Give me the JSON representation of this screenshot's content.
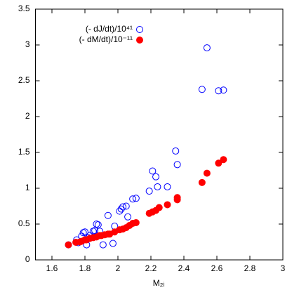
{
  "chart_data": {
    "type": "scatter",
    "x_label": "M₂ᵢ",
    "xlim": [
      1.5,
      3
    ],
    "xticks": [
      1.6,
      1.8,
      2,
      2.2,
      2.4,
      2.6,
      2.8,
      3
    ],
    "ylim": [
      0,
      3.5
    ],
    "yticks": [
      0,
      0.5,
      1,
      1.5,
      2,
      2.5,
      3,
      3.5
    ],
    "legend": "top-left",
    "series": [
      {
        "name": "(- dJ/dt)/10⁴¹",
        "color": "#0000ff",
        "marker": "open-circle",
        "x": [
          1.7,
          1.75,
          1.76,
          1.78,
          1.79,
          1.8,
          1.81,
          1.82,
          1.83,
          1.85,
          1.86,
          1.87,
          1.88,
          1.89,
          1.91,
          1.94,
          1.97,
          1.98,
          2.01,
          2.02,
          2.03,
          2.05,
          2.06,
          2.09,
          2.11,
          2.19,
          2.21,
          2.23,
          2.24,
          2.3,
          2.35,
          2.36,
          2.54,
          2.51,
          2.61,
          2.64
        ],
        "values": [
          0.21,
          0.28,
          0.24,
          0.33,
          0.38,
          0.39,
          0.21,
          0.31,
          0.34,
          0.4,
          0.41,
          0.5,
          0.49,
          0.4,
          0.21,
          0.62,
          0.23,
          0.47,
          0.68,
          0.71,
          0.74,
          0.75,
          0.6,
          0.85,
          0.86,
          0.96,
          1.24,
          1.16,
          1.02,
          1.02,
          1.52,
          1.33,
          2.96,
          2.38,
          2.36,
          2.37
        ]
      },
      {
        "name": "(- dM/dt)/10⁻¹¹",
        "color": "#ff0000",
        "marker": "filled-circle",
        "x": [
          1.7,
          1.745,
          1.77,
          1.78,
          1.8,
          1.81,
          1.83,
          1.85,
          1.87,
          1.89,
          1.9,
          1.92,
          1.94,
          1.95,
          1.98,
          2.01,
          2.03,
          2.05,
          2.07,
          2.09,
          2.11,
          2.19,
          2.21,
          2.23,
          2.25,
          2.3,
          2.36,
          2.36,
          2.51,
          2.54,
          2.61,
          2.64
        ],
        "values": [
          0.21,
          0.245,
          0.25,
          0.26,
          0.28,
          0.28,
          0.3,
          0.31,
          0.32,
          0.34,
          0.34,
          0.35,
          0.36,
          0.36,
          0.39,
          0.42,
          0.43,
          0.45,
          0.48,
          0.51,
          0.52,
          0.65,
          0.67,
          0.69,
          0.73,
          0.77,
          0.84,
          0.87,
          1.08,
          1.21,
          1.35,
          1.4
        ]
      }
    ]
  }
}
